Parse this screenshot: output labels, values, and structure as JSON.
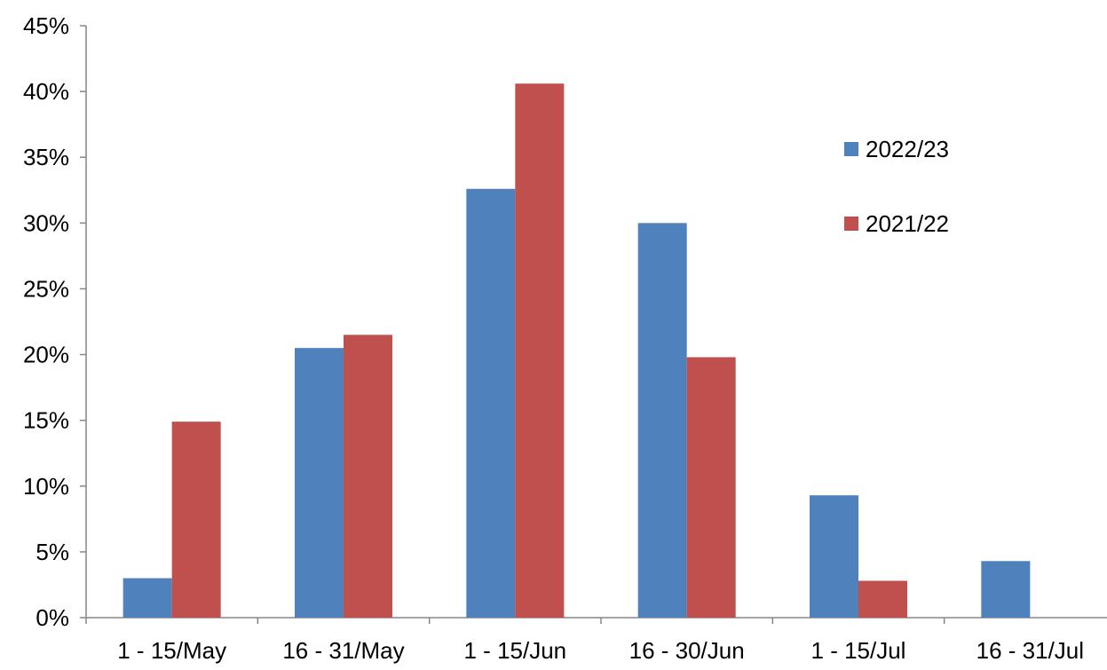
{
  "chart_data": {
    "type": "bar",
    "categories": [
      "1 - 15/May",
      "16 - 31/May",
      "1 - 15/Jun",
      "16 - 30/Jun",
      "1 - 15/Jul",
      "16 - 31/Jul"
    ],
    "series": [
      {
        "name": "2022/23",
        "values": [
          3.0,
          20.5,
          32.6,
          30.0,
          9.3,
          4.3
        ],
        "color": "#4f81bd"
      },
      {
        "name": "2021/22",
        "values": [
          14.9,
          21.5,
          40.6,
          19.8,
          2.8,
          0.0
        ],
        "color": "#c0504d"
      }
    ],
    "ylim": [
      0,
      45
    ],
    "yticks": [
      0,
      5,
      10,
      15,
      20,
      25,
      30,
      35,
      40,
      45
    ],
    "ytick_labels": [
      "0%",
      "5%",
      "10%",
      "15%",
      "20%",
      "25%",
      "30%",
      "35%",
      "40%",
      "45%"
    ],
    "grid": false,
    "legend_position": "right",
    "title": "",
    "xlabel": "",
    "ylabel": "",
    "axis_color": "#868686"
  }
}
